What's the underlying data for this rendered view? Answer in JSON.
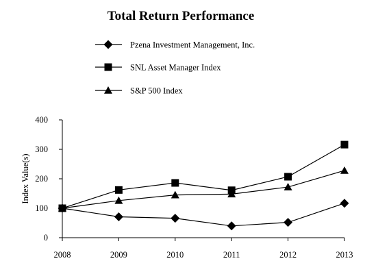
{
  "chart_data": {
    "type": "line",
    "title": "Total Return Performance",
    "xlabel": "",
    "ylabel": "Index Value(s)",
    "categories": [
      "2008",
      "2009",
      "2010",
      "2011",
      "2012",
      "2013"
    ],
    "ylim": [
      0,
      400
    ],
    "yticks": [
      "0",
      "100",
      "200",
      "300",
      "400"
    ],
    "grid": false,
    "legend_position": "top",
    "series": [
      {
        "name": "Pzena Investment Management, Inc.",
        "marker": "diamond",
        "values": [
          100,
          71,
          66,
          40,
          52,
          117
        ]
      },
      {
        "name": "SNL Asset Manager Index",
        "marker": "square",
        "values": [
          100,
          162,
          186,
          161,
          207,
          316
        ]
      },
      {
        "name": "S&P 500 Index",
        "marker": "triangle",
        "values": [
          100,
          126,
          145,
          148,
          172,
          228
        ]
      }
    ]
  }
}
